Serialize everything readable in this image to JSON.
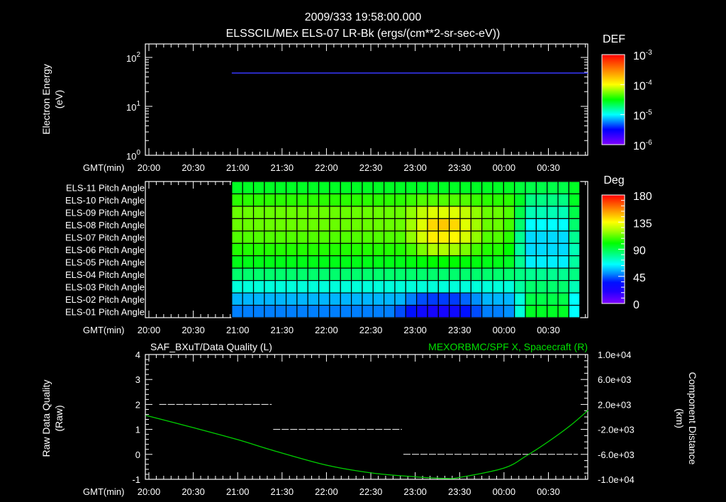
{
  "header": {
    "timestamp": "2009/333 19:58:00.000"
  },
  "time_axis": {
    "label": "GMT(min)",
    "range_min_from_2000": [
      -2,
      297
    ],
    "ticks_min_from_2000": [
      0,
      30,
      60,
      90,
      120,
      150,
      180,
      210,
      240,
      270
    ],
    "tick_labels": [
      "20:00",
      "20:30",
      "21:00",
      "21:30",
      "22:00",
      "22:30",
      "23:00",
      "23:30",
      "00:00",
      "00:30"
    ]
  },
  "chart_data": [
    {
      "type": "heatmap",
      "title": "ELSSCIL/MEx ELS-07 LR-Bk  (ergs/(cm**2-sr-sec-eV))",
      "ylabel": [
        "Electron Energy",
        "(eV)"
      ],
      "yscale": "log",
      "ylim": [
        1,
        190
      ],
      "y_ticks": [
        {
          "base": "10",
          "exp": "2",
          "value": 100
        },
        {
          "base": "10",
          "exp": "1",
          "value": 10
        },
        {
          "base": "10",
          "exp": "0",
          "value": 1
        }
      ],
      "series": [
        {
          "energy_eV": 48,
          "start_min": 56,
          "end_min": 297,
          "def": 2e-06
        }
      ],
      "colorbar": {
        "label": "DEF",
        "scale": "log",
        "range": [
          1e-06,
          0.001
        ],
        "ticks": [
          {
            "base": "10",
            "exp": "-3"
          },
          {
            "base": "10",
            "exp": "-4"
          },
          {
            "base": "10",
            "exp": "-5"
          },
          {
            "base": "10",
            "exp": "-6"
          }
        ]
      }
    },
    {
      "type": "heatmap",
      "row_labels": [
        "ELS-11 Pitch Angle",
        "ELS-10 Pitch Angle",
        "ELS-09 Pitch Angle",
        "ELS-08 Pitch Angle",
        "ELS-07 Pitch Angle",
        "ELS-06 Pitch Angle",
        "ELS-05 Pitch Angle",
        "ELS-04 Pitch Angle",
        "ELS-03 Pitch Angle",
        "ELS-02 Pitch Angle",
        "ELS-01 Pitch Angle"
      ],
      "start_min": 56,
      "column_width_min": 7.35,
      "values_deg": [
        [
          95,
          95,
          95,
          95,
          95,
          95,
          95,
          95,
          95,
          95,
          95,
          95,
          95,
          95,
          95,
          95,
          95,
          95,
          95,
          95,
          95,
          95,
          95,
          95,
          95,
          95,
          92,
          90,
          90,
          90,
          90,
          95
        ],
        [
          105,
          105,
          105,
          105,
          105,
          105,
          105,
          105,
          105,
          105,
          105,
          105,
          105,
          105,
          105,
          105,
          107,
          110,
          110,
          110,
          110,
          110,
          107,
          105,
          105,
          105,
          95,
          82,
          82,
          82,
          82,
          95
        ],
        [
          113,
          113,
          113,
          113,
          113,
          113,
          113,
          113,
          113,
          113,
          113,
          113,
          113,
          113,
          113,
          113,
          118,
          125,
          130,
          130,
          130,
          125,
          118,
          113,
          113,
          110,
          90,
          75,
          75,
          75,
          75,
          90
        ],
        [
          113,
          113,
          113,
          113,
          113,
          113,
          113,
          113,
          113,
          113,
          113,
          113,
          113,
          113,
          113,
          113,
          120,
          130,
          142,
          145,
          142,
          130,
          120,
          113,
          113,
          108,
          85,
          65,
          65,
          65,
          65,
          85
        ],
        [
          110,
          110,
          110,
          110,
          110,
          110,
          110,
          110,
          110,
          110,
          110,
          110,
          110,
          110,
          110,
          110,
          118,
          128,
          138,
          138,
          136,
          128,
          118,
          110,
          110,
          105,
          80,
          60,
          60,
          60,
          60,
          80
        ],
        [
          104,
          104,
          104,
          104,
          104,
          104,
          104,
          104,
          104,
          104,
          104,
          104,
          104,
          104,
          104,
          104,
          108,
          115,
          122,
          122,
          120,
          115,
          108,
          104,
          104,
          100,
          78,
          60,
          60,
          60,
          60,
          75
        ],
        [
          97,
          97,
          97,
          97,
          97,
          97,
          97,
          97,
          97,
          97,
          97,
          97,
          97,
          97,
          97,
          97,
          98,
          99,
          100,
          100,
          100,
          99,
          98,
          97,
          97,
          95,
          80,
          63,
          63,
          63,
          63,
          78
        ],
        [
          85,
          85,
          85,
          85,
          85,
          85,
          85,
          85,
          85,
          85,
          85,
          85,
          85,
          85,
          85,
          85,
          85,
          85,
          85,
          85,
          85,
          85,
          85,
          85,
          85,
          85,
          82,
          80,
          80,
          80,
          80,
          82
        ],
        [
          70,
          70,
          70,
          70,
          70,
          70,
          70,
          70,
          70,
          70,
          70,
          70,
          70,
          70,
          70,
          70,
          70,
          70,
          70,
          70,
          70,
          70,
          70,
          70,
          70,
          70,
          78,
          85,
          85,
          85,
          85,
          75
        ],
        [
          55,
          55,
          55,
          55,
          55,
          55,
          55,
          55,
          55,
          55,
          55,
          55,
          55,
          55,
          55,
          55,
          48,
          42,
          40,
          40,
          40,
          45,
          50,
          55,
          55,
          55,
          70,
          90,
          90,
          90,
          90,
          65
        ],
        [
          48,
          48,
          48,
          48,
          48,
          48,
          48,
          48,
          48,
          48,
          48,
          48,
          48,
          48,
          48,
          42,
          35,
          28,
          25,
          25,
          28,
          35,
          42,
          48,
          48,
          50,
          70,
          95,
          95,
          95,
          95,
          65
        ]
      ],
      "colorbar": {
        "label": "Deg",
        "range": [
          0,
          180
        ],
        "ticks": [
          "180",
          "135",
          "90",
          "45",
          "0"
        ]
      }
    },
    {
      "type": "line",
      "title_left": "SAF_BXuT/Data Quality (L)",
      "title_right": "MEXORBMC/SPF X, Spacecraft (R)",
      "ylabel_left": [
        "Raw Data Quality",
        "(Raw)"
      ],
      "ylabel_right": [
        "Component Distance",
        "(km)"
      ],
      "ylim_left": [
        -1,
        4
      ],
      "ylim_right": [
        -10000,
        10000
      ],
      "y_ticks_left": [
        "4",
        "3",
        "2",
        "1",
        "0",
        "-1"
      ],
      "y_ticks_right": [
        "1.0e+04",
        "6.0e+03",
        "2.0e+03",
        "-2.0e+03",
        "-6.0e+03",
        "-1.0e+04"
      ],
      "series": [
        {
          "name": "Data Quality",
          "axis": "left",
          "color": "#ffffff",
          "segments": [
            {
              "value": 2,
              "start_min": 7,
              "end_min": 83
            },
            {
              "value": 1,
              "start_min": 84,
              "end_min": 171
            },
            {
              "value": 0,
              "start_min": 172,
              "end_min": 290
            }
          ]
        },
        {
          "name": "SPF X",
          "axis": "right",
          "color": "#00d000",
          "x_min": [
            -2,
            30,
            60,
            85,
            120,
            150,
            180,
            200,
            210,
            240,
            255,
            270,
            285,
            297
          ],
          "y_km": [
            240,
            -1720,
            -3640,
            -5450,
            -7730,
            -8960,
            -9600,
            -9850,
            -9700,
            -8200,
            -6250,
            -3950,
            -1350,
            1100
          ]
        }
      ]
    }
  ],
  "colors": {
    "pitch_colormap": [
      [
        0,
        "#8000ff"
      ],
      [
        20,
        "#2000ff"
      ],
      [
        35,
        "#0010ff"
      ],
      [
        50,
        "#0090ff"
      ],
      [
        65,
        "#00ffff"
      ],
      [
        80,
        "#00ff90"
      ],
      [
        100,
        "#00ff00"
      ],
      [
        120,
        "#a0ff00"
      ],
      [
        135,
        "#ffff00"
      ],
      [
        155,
        "#ff9000"
      ],
      [
        180,
        "#ff0000"
      ]
    ],
    "def_colormap": [
      "#8000ff",
      "#0000ff",
      "#00ffff",
      "#00ff00",
      "#ffff00",
      "#ff8000",
      "#ff0000"
    ]
  }
}
